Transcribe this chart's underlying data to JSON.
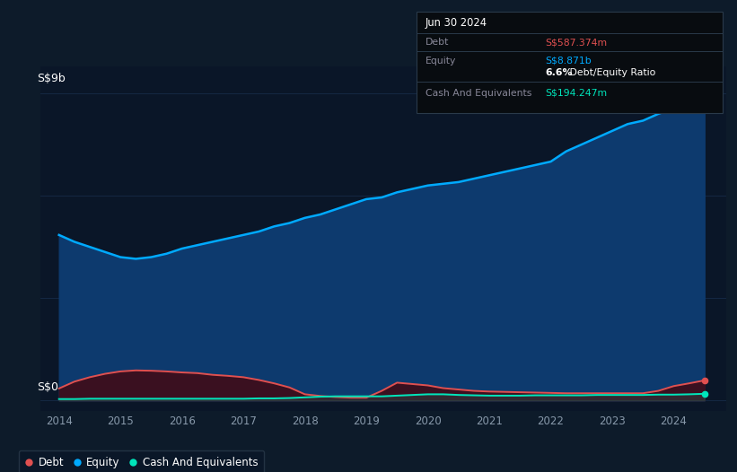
{
  "background_color": "#0d1b2a",
  "plot_bg_color": "#0a1628",
  "grid_color": "#1a3050",
  "ylabel": "S$9b",
  "y0_label": "S$0",
  "xlim": [
    2013.7,
    2024.85
  ],
  "ylim": [
    -0.3,
    9.8
  ],
  "xticks": [
    2014,
    2015,
    2016,
    2017,
    2018,
    2019,
    2020,
    2021,
    2022,
    2023,
    2024
  ],
  "equity_color": "#00aaff",
  "equity_fill": "#0d3a6e",
  "debt_color": "#e05050",
  "debt_fill": "#3a1020",
  "cash_color": "#00e5bb",
  "cash_fill": "#00e5bb",
  "tooltip_bg": "#080c10",
  "tooltip_border": "#2a3a4a",
  "tooltip_title": "Jun 30 2024",
  "tooltip_debt_label": "Debt",
  "tooltip_debt_value": "S$587.374m",
  "tooltip_debt_color": "#e05050",
  "tooltip_equity_label": "Equity",
  "tooltip_equity_value": "S$8.871b",
  "tooltip_equity_color": "#00aaff",
  "tooltip_ratio_bold": "6.6%",
  "tooltip_ratio_normal": " Debt/Equity Ratio",
  "tooltip_cash_label": "Cash And Equivalents",
  "tooltip_cash_value": "S$194.247m",
  "tooltip_cash_color": "#00e5bb",
  "tooltip_label_color": "#888899",
  "equity_x": [
    2014.0,
    2014.25,
    2014.5,
    2014.75,
    2015.0,
    2015.25,
    2015.5,
    2015.75,
    2016.0,
    2016.25,
    2016.5,
    2016.75,
    2017.0,
    2017.25,
    2017.5,
    2017.75,
    2018.0,
    2018.25,
    2018.5,
    2018.75,
    2019.0,
    2019.25,
    2019.5,
    2019.75,
    2020.0,
    2020.25,
    2020.5,
    2020.75,
    2021.0,
    2021.25,
    2021.5,
    2021.75,
    2022.0,
    2022.25,
    2022.5,
    2022.75,
    2023.0,
    2023.25,
    2023.5,
    2023.75,
    2024.0,
    2024.25,
    2024.5
  ],
  "equity_y": [
    4.85,
    4.65,
    4.5,
    4.35,
    4.2,
    4.15,
    4.2,
    4.3,
    4.45,
    4.55,
    4.65,
    4.75,
    4.85,
    4.95,
    5.1,
    5.2,
    5.35,
    5.45,
    5.6,
    5.75,
    5.9,
    5.95,
    6.1,
    6.2,
    6.3,
    6.35,
    6.4,
    6.5,
    6.6,
    6.7,
    6.8,
    6.9,
    7.0,
    7.3,
    7.5,
    7.7,
    7.9,
    8.1,
    8.2,
    8.4,
    8.55,
    8.75,
    8.871
  ],
  "debt_x": [
    2014.0,
    2014.25,
    2014.5,
    2014.75,
    2015.0,
    2015.25,
    2015.5,
    2015.75,
    2016.0,
    2016.25,
    2016.5,
    2016.75,
    2017.0,
    2017.25,
    2017.5,
    2017.75,
    2018.0,
    2018.25,
    2018.5,
    2018.75,
    2019.0,
    2019.25,
    2019.5,
    2019.75,
    2020.0,
    2020.25,
    2020.5,
    2020.75,
    2021.0,
    2021.25,
    2021.5,
    2021.75,
    2022.0,
    2022.25,
    2022.5,
    2022.75,
    2023.0,
    2023.25,
    2023.5,
    2023.75,
    2024.0,
    2024.25,
    2024.5
  ],
  "debt_y": [
    0.35,
    0.55,
    0.68,
    0.78,
    0.85,
    0.88,
    0.87,
    0.85,
    0.82,
    0.8,
    0.75,
    0.72,
    0.68,
    0.6,
    0.5,
    0.38,
    0.18,
    0.13,
    0.1,
    0.08,
    0.08,
    0.28,
    0.52,
    0.48,
    0.44,
    0.36,
    0.32,
    0.28,
    0.26,
    0.25,
    0.24,
    0.23,
    0.22,
    0.21,
    0.21,
    0.21,
    0.21,
    0.21,
    0.21,
    0.28,
    0.42,
    0.5,
    0.5874
  ],
  "cash_x": [
    2014.0,
    2014.25,
    2014.5,
    2014.75,
    2015.0,
    2015.25,
    2015.5,
    2015.75,
    2016.0,
    2016.25,
    2016.5,
    2016.75,
    2017.0,
    2017.25,
    2017.5,
    2017.75,
    2018.0,
    2018.25,
    2018.5,
    2018.75,
    2019.0,
    2019.25,
    2019.5,
    2019.75,
    2020.0,
    2020.25,
    2020.5,
    2020.75,
    2021.0,
    2021.25,
    2021.5,
    2021.75,
    2022.0,
    2022.25,
    2022.5,
    2022.75,
    2023.0,
    2023.25,
    2023.5,
    2023.75,
    2024.0,
    2024.25,
    2024.5
  ],
  "cash_y": [
    0.04,
    0.04,
    0.05,
    0.05,
    0.05,
    0.05,
    0.05,
    0.05,
    0.05,
    0.05,
    0.05,
    0.05,
    0.05,
    0.06,
    0.06,
    0.07,
    0.09,
    0.11,
    0.12,
    0.12,
    0.12,
    0.12,
    0.14,
    0.16,
    0.18,
    0.18,
    0.16,
    0.15,
    0.14,
    0.14,
    0.14,
    0.15,
    0.15,
    0.15,
    0.15,
    0.16,
    0.16,
    0.16,
    0.16,
    0.17,
    0.17,
    0.18,
    0.1942
  ],
  "legend_items": [
    {
      "label": "Debt",
      "color": "#e05050"
    },
    {
      "label": "Equity",
      "color": "#00aaff"
    },
    {
      "label": "Cash And Equivalents",
      "color": "#00e5bb"
    }
  ]
}
